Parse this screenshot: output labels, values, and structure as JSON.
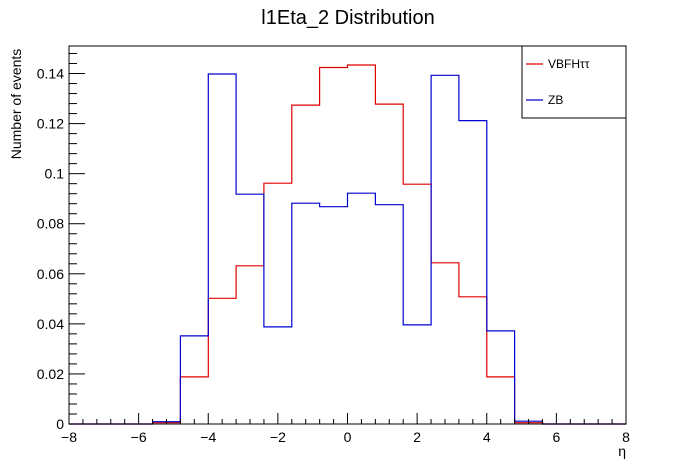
{
  "chart_data": {
    "type": "histogram",
    "title": "l1Eta_2 Distribution",
    "xlabel": "η",
    "ylabel": "Number of events",
    "xlim": [
      -8,
      8
    ],
    "ylim": [
      0,
      0.151
    ],
    "x_ticks": [
      "−8",
      "−6",
      "−4",
      "−2",
      "0",
      "2",
      "4",
      "6",
      "8"
    ],
    "y_ticks": [
      "0",
      "0.02",
      "0.04",
      "0.06",
      "0.08",
      "0.1",
      "0.12",
      "0.14"
    ],
    "y_tick_values": [
      0,
      0.02,
      0.04,
      0.06,
      0.08,
      0.1,
      0.12,
      0.14
    ],
    "bin_edges": [
      -8,
      -7.2,
      -6.4,
      -5.6,
      -4.8,
      -4.0,
      -3.2,
      -2.4,
      -1.6,
      -0.8,
      0,
      0.8,
      1.6,
      2.4,
      3.2,
      4.0,
      4.8,
      5.6,
      6.4,
      7.2,
      8
    ],
    "legend_position": "top-right",
    "grid": false,
    "series": [
      {
        "name": "VBFHττ",
        "color": "#e00000",
        "values": [
          0,
          0,
          0,
          0.0005,
          0.0188,
          0.0502,
          0.0632,
          0.0962,
          0.1274,
          0.1424,
          0.1434,
          0.1278,
          0.0958,
          0.0644,
          0.0508,
          0.0188,
          0.0005,
          0,
          0,
          0
        ]
      },
      {
        "name": "ZB",
        "color": "#0000d0",
        "values": [
          0,
          0,
          0,
          0.0009,
          0.0352,
          0.1398,
          0.0918,
          0.0388,
          0.0882,
          0.0868,
          0.0922,
          0.0876,
          0.0396,
          0.1393,
          0.1212,
          0.0372,
          0.0011,
          0,
          0,
          0
        ]
      }
    ]
  }
}
